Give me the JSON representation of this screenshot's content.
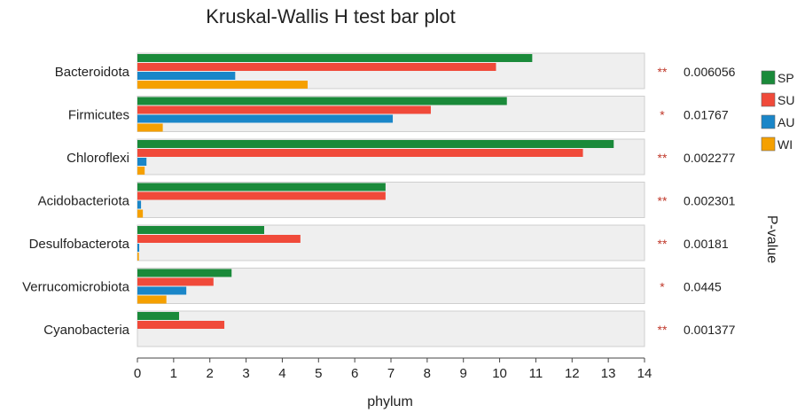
{
  "chart_data": {
    "type": "bar",
    "orientation": "horizontal",
    "title": "Kruskal-Wallis H test bar plot",
    "xlabel": "phylum",
    "right_axis_label": "P-value",
    "xlim": [
      0,
      14
    ],
    "x_ticks": [
      "0",
      "1",
      "2",
      "3",
      "4",
      "5",
      "6",
      "7",
      "8",
      "9",
      "10",
      "11",
      "12",
      "13",
      "14"
    ],
    "categories": [
      "Bacteroidota",
      "Firmicutes",
      "Chloroflexi",
      "Acidobacteriota",
      "Desulfobacterota",
      "Verrucomicrobiota",
      "Cyanobacteria"
    ],
    "series": [
      {
        "name": "SP",
        "color": "#1a8a3a",
        "values": [
          10.9,
          10.2,
          13.15,
          6.85,
          3.5,
          2.6,
          1.15
        ]
      },
      {
        "name": "SU",
        "color": "#f04a3a",
        "values": [
          9.9,
          8.1,
          12.3,
          6.85,
          4.5,
          2.1,
          2.4
        ]
      },
      {
        "name": "AU",
        "color": "#1a86c8",
        "values": [
          2.7,
          7.05,
          0.25,
          0.1,
          0.05,
          1.35,
          0
        ]
      },
      {
        "name": "WI",
        "color": "#f5a000",
        "values": [
          4.7,
          0.7,
          0.2,
          0.15,
          0.04,
          0.8,
          0
        ]
      }
    ],
    "significance": [
      "**",
      "*",
      "**",
      "**",
      "**",
      "*",
      "**"
    ],
    "p_values": [
      "0.006056",
      "0.01767",
      "0.002277",
      "0.002301",
      "0.00181",
      "0.0445",
      "0.001377"
    ],
    "legend_position": "right",
    "grid": false
  }
}
